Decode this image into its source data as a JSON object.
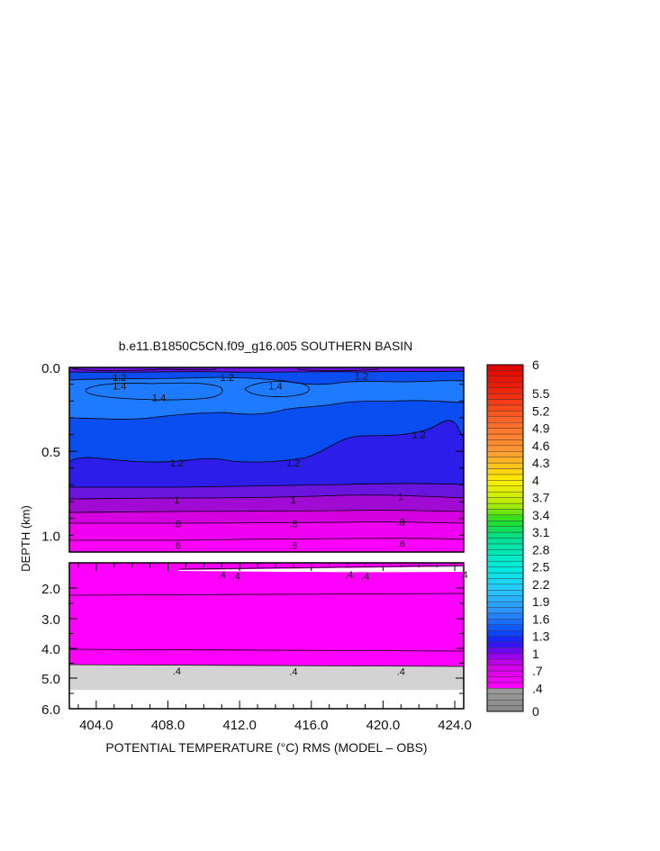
{
  "chart_data": {
    "type": "heatmap",
    "title": "b.e11.B1850C5CN.f09_g16.005 SOUTHERN BASIN",
    "xlabel": "POTENTIAL TEMPERATURE (°C) RMS (MODEL – OBS)",
    "ylabel": "DEPTH (km)",
    "xlim": [
      402.5,
      424.5
    ],
    "xticks": [
      "404.0",
      "408.0",
      "412.0",
      "416.0",
      "420.0",
      "424.0"
    ],
    "upper_panel": {
      "ylim": [
        0.0,
        1.1
      ],
      "yticks": [
        "0.0",
        "0.5",
        "1.0"
      ]
    },
    "lower_panel": {
      "ylim": [
        1.5,
        6.0
      ],
      "yticks": [
        "2.0",
        "3.0",
        "4.0",
        "5.0",
        "6.0"
      ]
    },
    "contour_labels_upper": [
      {
        "text": "1.2",
        "x": 405.3,
        "y": 0.06
      },
      {
        "text": "1.2",
        "x": 411.3,
        "y": 0.06
      },
      {
        "text": "1.2",
        "x": 418.8,
        "y": 0.05
      },
      {
        "text": "1.4",
        "x": 405.3,
        "y": 0.11
      },
      {
        "text": "1.4",
        "x": 407.5,
        "y": 0.18
      },
      {
        "text": "1.4",
        "x": 414.0,
        "y": 0.11
      },
      {
        "text": "1.2",
        "x": 422.0,
        "y": 0.4
      },
      {
        "text": "1.2",
        "x": 408.5,
        "y": 0.57
      },
      {
        "text": "1.2",
        "x": 415.0,
        "y": 0.57
      },
      {
        "text": "1",
        "x": 408.5,
        "y": 0.79
      },
      {
        "text": "1",
        "x": 415.0,
        "y": 0.79
      },
      {
        "text": "1",
        "x": 421.0,
        "y": 0.77
      },
      {
        "text": ".8",
        "x": 408.5,
        "y": 0.93
      },
      {
        "text": ".8",
        "x": 415.0,
        "y": 0.93
      },
      {
        "text": ".8",
        "x": 421.0,
        "y": 0.92
      },
      {
        "text": ".6",
        "x": 408.5,
        "y": 1.06
      },
      {
        "text": ".6",
        "x": 415.0,
        "y": 1.06
      },
      {
        "text": ".6",
        "x": 421.0,
        "y": 1.05
      }
    ],
    "contour_labels_lower": [
      {
        "text": ".4",
        "x": 411.0,
        "y": 1.73
      },
      {
        "text": ".4",
        "x": 411.8,
        "y": 1.76
      },
      {
        "text": ".4",
        "x": 418.1,
        "y": 1.73
      },
      {
        "text": ".4",
        "x": 419.0,
        "y": 1.76
      },
      {
        "text": ".4",
        "x": 424.5,
        "y": 1.73
      },
      {
        "text": ".4",
        "x": 408.5,
        "y": 4.75
      },
      {
        "text": ".4",
        "x": 415.0,
        "y": 4.77
      },
      {
        "text": ".4",
        "x": 421.0,
        "y": 4.77
      }
    ],
    "colorbar": {
      "min": 0,
      "max": 6,
      "labels": [
        "0",
        ".4",
        ".7",
        "1",
        "1.3",
        "1.6",
        "1.9",
        "2.2",
        "2.5",
        "2.8",
        "3.1",
        "3.4",
        "3.7",
        "4",
        "4.3",
        "4.6",
        "4.9",
        "5.2",
        "5.5",
        "6"
      ],
      "colors": {
        "gray": "#888888",
        "white": "#ffffff",
        "magenta": "#ff00ff",
        "purple": "#8800ee",
        "blue": "#1a1aff",
        "sky": "#2a8cff",
        "cyan": "#00f0e0",
        "green": "#22dd22",
        "yellow": "#ffee00",
        "orange": "#ff9933",
        "red": "#dd0000"
      }
    },
    "fill_colors": {
      "c14": "#1e7aff",
      "c12": "#0a4ef2",
      "c10": "#2c1ee8",
      "c09": "#6a14dd",
      "c08": "#a00ad2",
      "c07": "#d400e0",
      "c06": "#f000f0",
      "c05": "#ff00ff",
      "ground": "#d3d3d3"
    }
  }
}
